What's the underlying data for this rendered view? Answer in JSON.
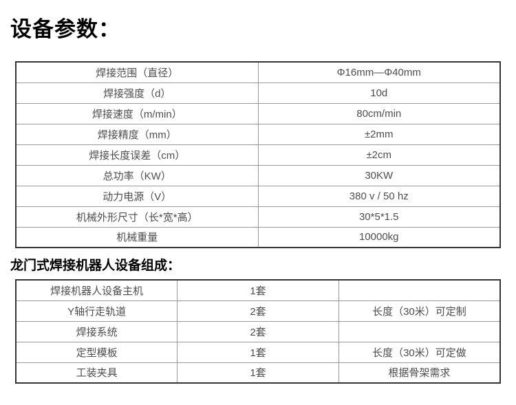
{
  "titles": {
    "main": "设备参数：",
    "composition": "龙门式焊接机器人设备组成："
  },
  "colors": {
    "background": "#ffffff",
    "title_text": "#000000",
    "cell_text": "#4d4d4d",
    "outer_border": "#333333",
    "inner_border": "#979797"
  },
  "parameters_table": {
    "rows": [
      {
        "label": "焊接范围（直径）",
        "value": "Φ16mm—Φ40mm"
      },
      {
        "label": "焊接强度（d）",
        "value": "10d"
      },
      {
        "label": "焊接速度（m/min）",
        "value": "80cm/min"
      },
      {
        "label": "焊接精度（mm）",
        "value": "±2mm"
      },
      {
        "label": "焊接长度误差（cm）",
        "value": "±2cm"
      },
      {
        "label": "总功率（KW）",
        "value": "30KW"
      },
      {
        "label": "动力电源（V）",
        "value": "380 v / 50 hz"
      },
      {
        "label": "机械外形尺寸（长*宽*高）",
        "value": "30*5*1.5"
      },
      {
        "label": "机械重量",
        "value": "10000kg"
      }
    ]
  },
  "composition_table": {
    "rows": [
      {
        "item": "焊接机器人设备主机",
        "quantity": "1套",
        "note": ""
      },
      {
        "item": "Y轴行走轨道",
        "quantity": "2套",
        "note": "长度（30米）可定制"
      },
      {
        "item": "焊接系统",
        "quantity": "2套",
        "note": ""
      },
      {
        "item": "定型模板",
        "quantity": "1套",
        "note": "长度（30米）可定做"
      },
      {
        "item": "工装夹具",
        "quantity": "1套",
        "note": "根据骨架需求"
      }
    ]
  }
}
